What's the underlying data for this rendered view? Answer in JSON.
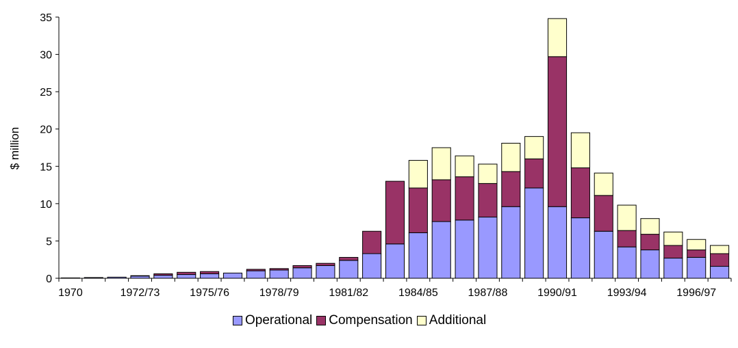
{
  "chart_data": {
    "type": "bar",
    "stacked": true,
    "ylabel": "$ million",
    "xlabel": "",
    "ylim": [
      0,
      35
    ],
    "yticks": [
      0,
      5,
      10,
      15,
      20,
      25,
      30,
      35
    ],
    "categories": [
      "1970",
      "1970/71",
      "1971/72",
      "1972/73",
      "1973/74",
      "1974/75",
      "1975/76",
      "1976/77",
      "1977/78",
      "1978/79",
      "1979/80",
      "1980/81",
      "1981/82",
      "1982/83",
      "1983/84",
      "1984/85",
      "1985/86",
      "1986/87",
      "1987/88",
      "1988/89",
      "1989/90",
      "1990/91",
      "1991/92",
      "1992/93",
      "1993/94",
      "1994/95",
      "1995/96",
      "1996/97",
      "1997/98"
    ],
    "visible_tick_labels": [
      "1970",
      "1972/73",
      "1975/76",
      "1978/79",
      "1981/82",
      "1984/85",
      "1987/88",
      "1990/91",
      "1993/94",
      "1996/97"
    ],
    "series": [
      {
        "name": "Operational",
        "color": "#9999ff",
        "values": [
          0.05,
          0.1,
          0.15,
          0.3,
          0.4,
          0.5,
          0.6,
          0.7,
          1.0,
          1.1,
          1.4,
          1.7,
          2.4,
          3.3,
          4.6,
          6.1,
          7.6,
          7.8,
          8.2,
          9.6,
          12.1,
          9.6,
          8.1,
          6.3,
          4.2,
          3.8,
          2.7,
          2.8,
          1.6
        ]
      },
      {
        "name": "Compensation",
        "color": "#993366",
        "values": [
          0,
          0,
          0,
          0.05,
          0.2,
          0.3,
          0.3,
          0,
          0.2,
          0.2,
          0.3,
          0.3,
          0.4,
          3.0,
          8.4,
          6.0,
          5.6,
          5.8,
          4.5,
          4.7,
          3.9,
          20.1,
          6.7,
          4.8,
          2.2,
          2.1,
          1.7,
          1.0,
          1.7
        ]
      },
      {
        "name": "Additional",
        "color": "#ffffcc",
        "values": [
          0,
          0,
          0,
          0,
          0,
          0,
          0,
          0,
          0,
          0,
          0,
          0,
          0,
          0,
          0,
          3.7,
          4.3,
          2.8,
          2.6,
          3.8,
          3.0,
          5.1,
          4.7,
          3.0,
          3.4,
          2.1,
          1.8,
          1.4,
          1.1
        ]
      }
    ],
    "legend": {
      "position": "bottom"
    },
    "grid": false
  }
}
